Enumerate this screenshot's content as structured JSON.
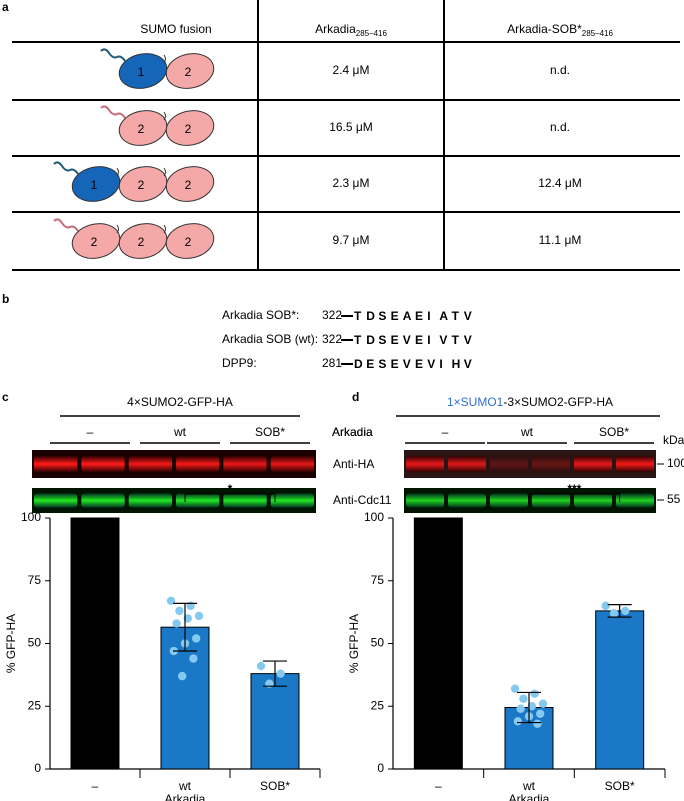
{
  "panel_labels": [
    "a",
    "b",
    "c",
    "d"
  ],
  "table": {
    "header": [
      {
        "text": "SUMO fusion"
      },
      {
        "text": "Arkadia",
        "sub": "285–416"
      },
      {
        "text": "Arkadia-SOB*",
        "sub": "285–416"
      }
    ],
    "rows": [
      {
        "diagram": [
          {
            "label": "1",
            "color": "#1565b8",
            "label_color": "#ffffff"
          },
          {
            "label": "2",
            "color": "#f4a9a8",
            "label_color": "#000000"
          }
        ],
        "cells": [
          "2.4 μM",
          "n.d."
        ]
      },
      {
        "diagram": [
          {
            "label": "2",
            "color": "#f4a9a8",
            "label_color": "#000000"
          },
          {
            "label": "2",
            "color": "#f4a9a8",
            "label_color": "#000000"
          }
        ],
        "cells": [
          "16.5 μM",
          "n.d."
        ]
      },
      {
        "diagram": [
          {
            "label": "1",
            "color": "#1565b8",
            "label_color": "#ffffff"
          },
          {
            "label": "2",
            "color": "#f4a9a8",
            "label_color": "#000000"
          },
          {
            "label": "2",
            "color": "#f4a9a8",
            "label_color": "#000000"
          }
        ],
        "cells": [
          "2.3 μM",
          "12.4 μM"
        ]
      },
      {
        "diagram": [
          {
            "label": "2",
            "color": "#f4a9a8",
            "label_color": "#000000"
          },
          {
            "label": "2",
            "color": "#f4a9a8",
            "label_color": "#000000"
          },
          {
            "label": "2",
            "color": "#f4a9a8",
            "label_color": "#000000"
          }
        ],
        "cells": [
          "9.7 μM",
          "11.1 μM"
        ]
      }
    ]
  },
  "sequences": [
    {
      "name": "Arkadia SOB*:",
      "start": 322,
      "residues": [
        {
          "text": "T",
          "color": "#000000"
        },
        {
          "text": "D",
          "color": "#d0202a"
        },
        {
          "text": "S",
          "color": "#000000"
        },
        {
          "text": "E",
          "color": "#d0202a"
        },
        {
          "text": "A",
          "color": "#1a8a3a"
        },
        {
          "text": "E",
          "color": "#d0202a"
        },
        {
          "text": "I",
          "color": "#1a8a3a"
        },
        {
          "text": "A",
          "color": "#1a8a3a"
        },
        {
          "text": "T",
          "color": "#000000"
        },
        {
          "text": "V",
          "color": "#2a48c8"
        }
      ]
    },
    {
      "name": "Arkadia SOB (wt):",
      "start": 322,
      "residues": [
        {
          "text": "T",
          "color": "#000000"
        },
        {
          "text": "D",
          "color": "#d0202a"
        },
        {
          "text": "S",
          "color": "#000000"
        },
        {
          "text": "E",
          "color": "#d0202a"
        },
        {
          "text": "V",
          "color": "#2a48c8"
        },
        {
          "text": "E",
          "color": "#d0202a"
        },
        {
          "text": "I",
          "color": "#2a48c8"
        },
        {
          "text": "V",
          "color": "#2a48c8"
        },
        {
          "text": "T",
          "color": "#000000"
        },
        {
          "text": "V",
          "color": "#2a48c8"
        }
      ]
    },
    {
      "name": "DPP9:",
      "start": 281,
      "residues": [
        {
          "text": "D",
          "color": "#d0202a"
        },
        {
          "text": "E",
          "color": "#d0202a"
        },
        {
          "text": "S",
          "color": "#000000"
        },
        {
          "text": "E",
          "color": "#d0202a"
        },
        {
          "text": "V",
          "color": "#2a48c8"
        },
        {
          "text": "E",
          "color": "#d0202a"
        },
        {
          "text": "V",
          "color": "#2a48c8"
        },
        {
          "text": "I",
          "color": "#2a48c8"
        },
        {
          "text": "H",
          "color": "#000000"
        },
        {
          "text": "V",
          "color": "#2a48c8"
        }
      ]
    }
  ],
  "blots": [
    {
      "title": [
        {
          "text": "4×SUMO2-GFP-HA",
          "color": "#000000"
        }
      ],
      "groups": [
        "–",
        "wt",
        "SOB*"
      ],
      "factor": "Arkadia",
      "rows": [
        "Anti-HA",
        "Anti-Cdc11"
      ]
    },
    {
      "title": [
        {
          "text": "1×SUMO1",
          "color": "#2f6fd0"
        },
        {
          "text": "-3×SUMO2-GFP-HA",
          "color": "#000000"
        }
      ],
      "groups": [
        "–",
        "wt",
        "SOB*"
      ],
      "factor": "Arkadia",
      "unit": "kDa",
      "markers": [
        100,
        55
      ]
    }
  ],
  "chart_data": [
    {
      "type": "bar",
      "ylabel": "% GFP-HA",
      "xlabel": "Arkadia",
      "categories": [
        "–",
        "wt",
        "SOB*"
      ],
      "values": [
        100,
        56.5,
        38
      ],
      "errors": [
        0,
        9.5,
        5
      ],
      "colors": [
        "#000000",
        "#1a78c6",
        "#1a78c6"
      ],
      "points": [
        [],
        [
          67,
          65,
          63,
          61,
          60,
          58,
          52,
          50,
          47,
          44,
          37
        ],
        [
          41,
          38,
          34
        ]
      ],
      "point_color": "#86c9f0",
      "ylim": [
        0,
        100
      ],
      "yticks": [
        0,
        25,
        50,
        75,
        100
      ],
      "significance": {
        "label": "*",
        "from": 1,
        "to": 2
      }
    },
    {
      "type": "bar",
      "ylabel": "% GFP-HA",
      "xlabel": "Arkadia",
      "categories": [
        "–",
        "wt",
        "SOB*"
      ],
      "values": [
        100,
        24.5,
        63
      ],
      "errors": [
        0,
        6,
        2.5
      ],
      "colors": [
        "#000000",
        "#1a78c6",
        "#1a78c6"
      ],
      "points": [
        [],
        [
          32,
          30,
          28,
          26,
          25,
          24,
          22,
          21,
          19,
          18
        ],
        [
          65,
          63,
          62
        ]
      ],
      "point_color": "#86c9f0",
      "ylim": [
        0,
        100
      ],
      "yticks": [
        0,
        25,
        50,
        75,
        100
      ],
      "significance": {
        "label": "***",
        "from": 1,
        "to": 2
      }
    }
  ]
}
